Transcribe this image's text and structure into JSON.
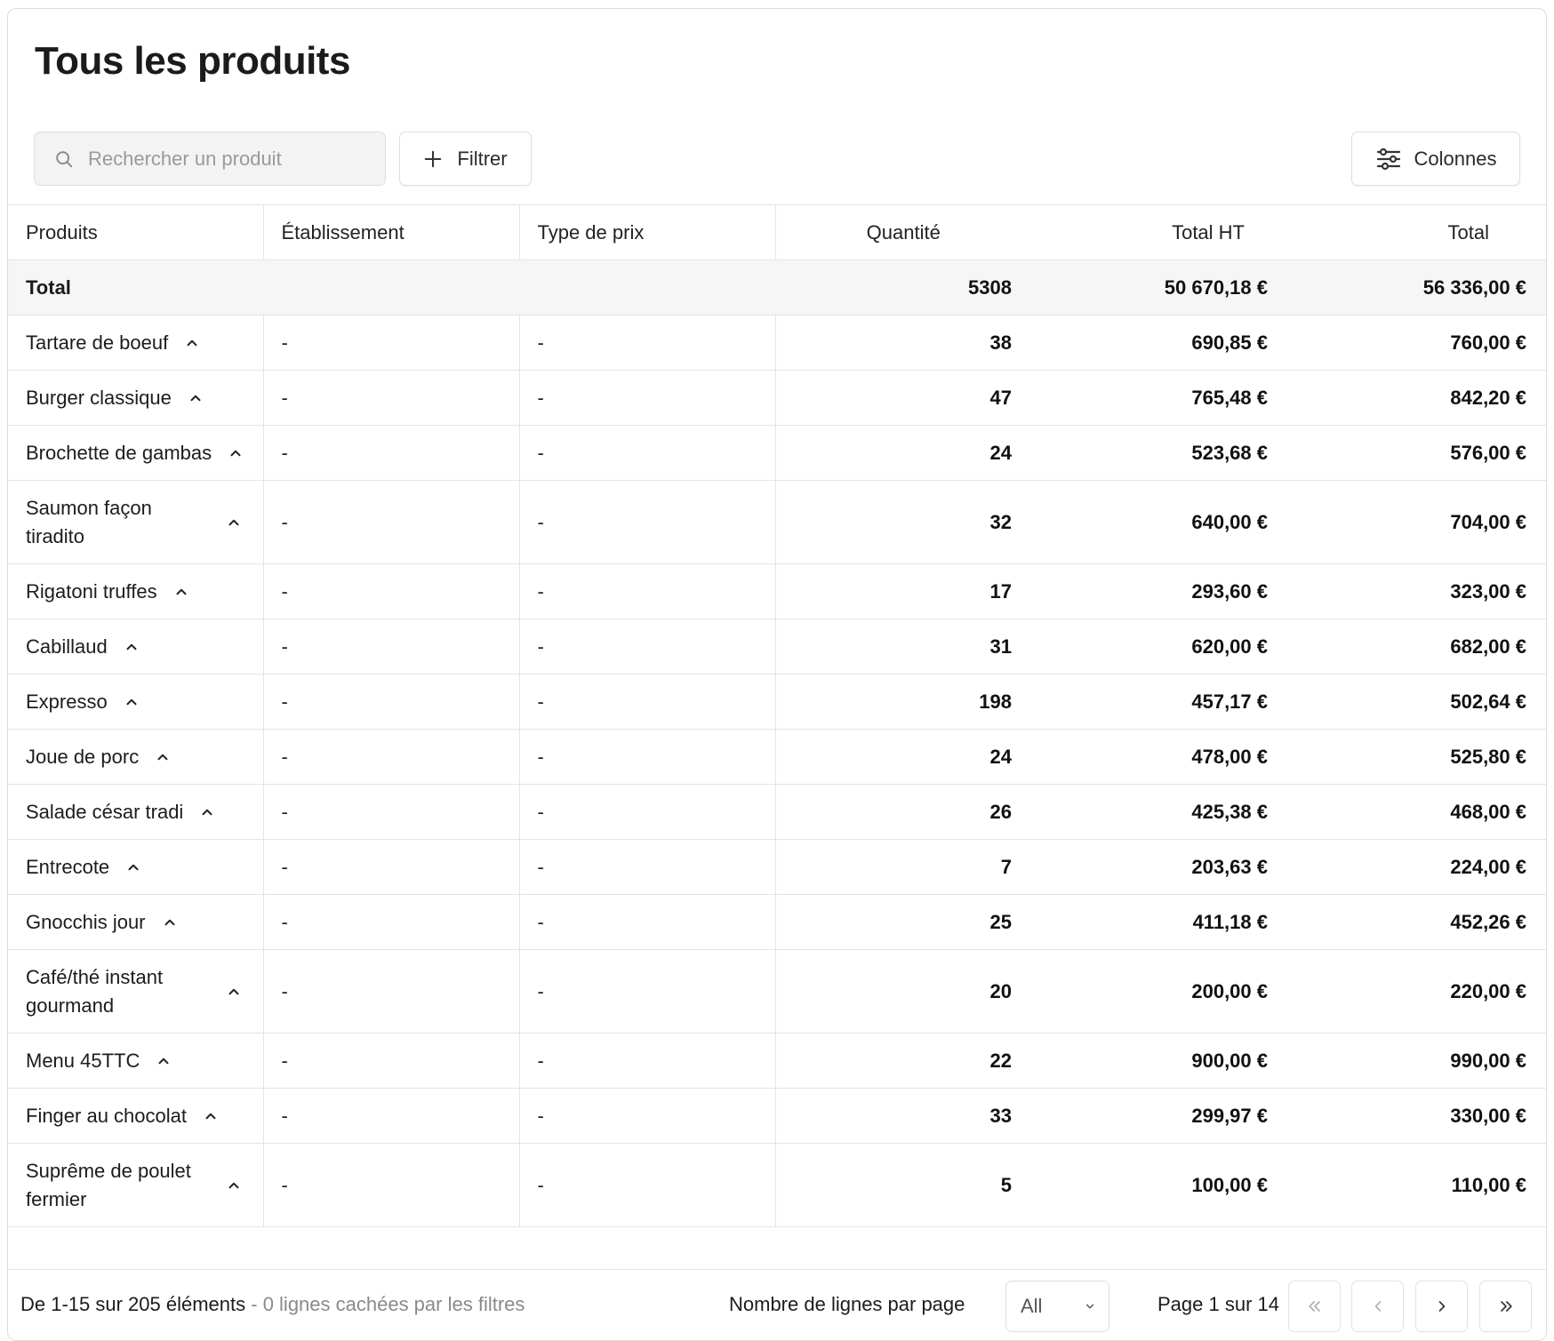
{
  "page": {
    "title": "Tous les produits"
  },
  "toolbar": {
    "search_placeholder": "Rechercher un produit",
    "filter_label": "Filtrer",
    "columns_label": "Colonnes"
  },
  "table": {
    "headers": [
      "Produits",
      "Établissement",
      "Type de prix",
      "Quantité",
      "Total HT",
      "Total"
    ],
    "total": {
      "label": "Total",
      "quantity": "5308",
      "total_ht": "50 670,18 €",
      "total": "56 336,00 €"
    },
    "rows": [
      {
        "name": "Tartare de boeuf",
        "etab": "-",
        "type": "-",
        "qty": "38",
        "ht": "690,85 €",
        "total": "760,00 €"
      },
      {
        "name": "Burger classique",
        "etab": "-",
        "type": "-",
        "qty": "47",
        "ht": "765,48 €",
        "total": "842,20 €"
      },
      {
        "name": "Brochette de gambas",
        "etab": "-",
        "type": "-",
        "qty": "24",
        "ht": "523,68 €",
        "total": "576,00 €"
      },
      {
        "name": "Saumon façon tiradito",
        "etab": "-",
        "type": "-",
        "qty": "32",
        "ht": "640,00 €",
        "total": "704,00 €"
      },
      {
        "name": "Rigatoni truffes",
        "etab": "-",
        "type": "-",
        "qty": "17",
        "ht": "293,60 €",
        "total": "323,00 €"
      },
      {
        "name": "Cabillaud",
        "etab": "-",
        "type": "-",
        "qty": "31",
        "ht": "620,00 €",
        "total": "682,00 €"
      },
      {
        "name": "Expresso",
        "etab": "-",
        "type": "-",
        "qty": "198",
        "ht": "457,17 €",
        "total": "502,64 €"
      },
      {
        "name": "Joue de porc",
        "etab": "-",
        "type": "-",
        "qty": "24",
        "ht": "478,00 €",
        "total": "525,80 €"
      },
      {
        "name": "Salade césar tradi",
        "etab": "-",
        "type": "-",
        "qty": "26",
        "ht": "425,38 €",
        "total": "468,00 €"
      },
      {
        "name": "Entrecote",
        "etab": "-",
        "type": "-",
        "qty": "7",
        "ht": "203,63 €",
        "total": "224,00 €"
      },
      {
        "name": "Gnocchis jour",
        "etab": "-",
        "type": "-",
        "qty": "25",
        "ht": "411,18 €",
        "total": "452,26 €"
      },
      {
        "name": "Café/thé instant gourmand",
        "etab": "-",
        "type": "-",
        "qty": "20",
        "ht": "200,00 €",
        "total": "220,00 €"
      },
      {
        "name": "Menu 45TTC",
        "etab": "-",
        "type": "-",
        "qty": "22",
        "ht": "900,00 €",
        "total": "990,00 €"
      },
      {
        "name": "Finger au chocolat",
        "etab": "-",
        "type": "-",
        "qty": "33",
        "ht": "299,97 €",
        "total": "330,00 €"
      },
      {
        "name": "Suprême de poulet fermier",
        "etab": "-",
        "type": "-",
        "qty": "5",
        "ht": "100,00 €",
        "total": "110,00 €"
      }
    ]
  },
  "footer": {
    "range": "De 1-15 sur 205 éléments",
    "hidden": " - 0 lignes cachées par les filtres",
    "rows_per_page_label": "Nombre de lignes par page",
    "rows_per_page_value": "All",
    "page_info": "Page 1 sur 14"
  },
  "icons": {
    "search": "search-icon",
    "filter": "plus-icon",
    "columns": "sliders-icon",
    "expand": "chevron-up-icon",
    "select": "chevron-down-icon",
    "pagination": [
      "chevrons-left-icon",
      "chevron-left-icon",
      "chevron-right-icon",
      "chevrons-right-icon"
    ]
  }
}
